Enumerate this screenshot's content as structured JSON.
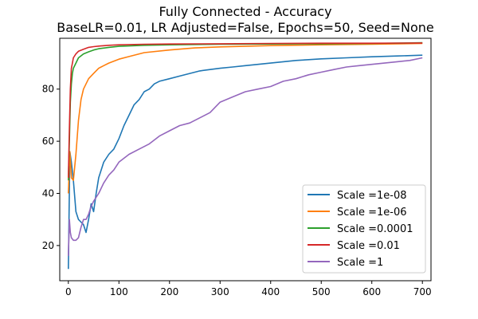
{
  "chart_data": {
    "type": "line",
    "title": "Fully Connected - Accuracy",
    "subtitle": "BaseLR=0.01, LR Adjusted=False, Epochs=50, Seed=None",
    "xlabel": "",
    "ylabel": "",
    "xlim": [
      -17,
      717
    ],
    "ylim": [
      6.5,
      99.5
    ],
    "xticks": [
      0,
      100,
      200,
      300,
      400,
      500,
      600,
      700
    ],
    "yticks": [
      20,
      40,
      60,
      80
    ],
    "grid": false,
    "legend_position": "lower-right",
    "series": [
      {
        "name": "Scale =1e-08",
        "color": "#1f77b4",
        "x": [
          0,
          3,
          6,
          10,
          15,
          20,
          25,
          30,
          35,
          40,
          45,
          50,
          55,
          60,
          70,
          80,
          90,
          100,
          110,
          120,
          130,
          140,
          150,
          160,
          170,
          180,
          200,
          220,
          240,
          260,
          280,
          300,
          325,
          350,
          375,
          400,
          425,
          450,
          475,
          500,
          550,
          600,
          650,
          700
        ],
        "y": [
          11,
          56,
          52,
          45,
          33,
          30,
          29,
          28,
          25,
          30,
          36,
          33,
          40,
          46,
          52,
          55,
          57,
          61,
          66,
          70,
          74,
          76,
          79,
          80,
          82,
          83,
          84,
          85,
          86,
          87,
          87.5,
          88,
          88.5,
          89,
          89.5,
          90,
          90.5,
          91,
          91.3,
          91.6,
          92,
          92.4,
          92.7,
          93
        ]
      },
      {
        "name": "Scale =1e-06",
        "color": "#ff7f0e",
        "x": [
          0,
          3,
          6,
          10,
          15,
          20,
          25,
          30,
          40,
          50,
          60,
          70,
          80,
          100,
          120,
          150,
          200,
          250,
          300,
          400,
          500,
          600,
          700
        ],
        "y": [
          40,
          56,
          46,
          45,
          55,
          68,
          76,
          80,
          84,
          86,
          88,
          89,
          90,
          91.5,
          92.5,
          94,
          95,
          95.8,
          96.2,
          96.7,
          97,
          97.2,
          97.5
        ]
      },
      {
        "name": "Scale =0.0001",
        "color": "#2ca02c",
        "x": [
          0,
          2,
          4,
          6,
          8,
          10,
          15,
          20,
          30,
          40,
          50,
          60,
          80,
          100,
          150,
          200,
          300,
          400,
          500,
          600,
          700
        ],
        "y": [
          45,
          60,
          75,
          82,
          86,
          88,
          90,
          92,
          93.5,
          94.3,
          95,
          95.5,
          96,
          96.4,
          96.8,
          97,
          97.2,
          97.3,
          97.4,
          97.5,
          97.8
        ]
      },
      {
        "name": "Scale =0.01",
        "color": "#d62728",
        "x": [
          0,
          2,
          4,
          6,
          8,
          10,
          15,
          20,
          30,
          40,
          50,
          60,
          80,
          100,
          150,
          200,
          300,
          400,
          500,
          600,
          700
        ],
        "y": [
          46,
          65,
          80,
          88,
          90,
          92,
          93.5,
          94.5,
          95.3,
          96,
          96.3,
          96.5,
          96.8,
          97,
          97.2,
          97.3,
          97.4,
          97.5,
          97.6,
          97.6,
          97.7
        ]
      },
      {
        "name": "Scale =1",
        "color": "#9467bd",
        "x": [
          0,
          2,
          4,
          6,
          10,
          15,
          20,
          25,
          30,
          35,
          40,
          45,
          50,
          60,
          70,
          80,
          90,
          100,
          120,
          140,
          160,
          180,
          200,
          220,
          240,
          260,
          280,
          300,
          325,
          350,
          375,
          400,
          425,
          450,
          475,
          500,
          525,
          550,
          575,
          600,
          625,
          650,
          675,
          700
        ],
        "y": [
          16,
          30,
          25,
          23,
          22,
          22,
          23,
          27,
          30,
          30,
          32,
          35,
          37,
          40,
          44,
          47,
          49,
          52,
          55,
          57,
          59,
          62,
          64,
          66,
          67,
          69,
          71,
          75,
          77,
          79,
          80,
          81,
          83,
          84,
          85.5,
          86.5,
          87.5,
          88.5,
          89,
          89.5,
          90,
          90.5,
          91,
          92
        ]
      }
    ]
  }
}
